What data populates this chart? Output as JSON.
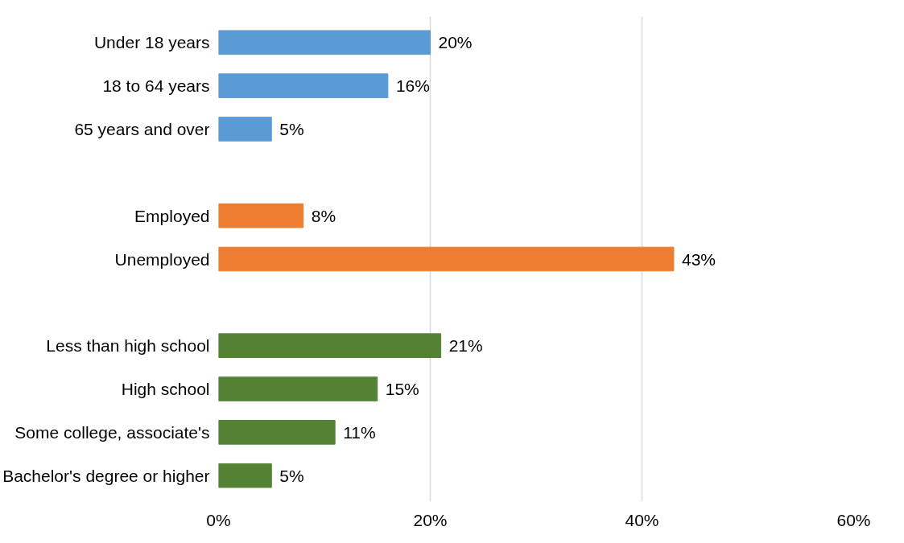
{
  "chart_data": {
    "type": "bar",
    "orientation": "horizontal",
    "categories": [
      "Under 18 years",
      "18 to 64 years",
      "65 years and over",
      null,
      "Employed",
      "Unemployed",
      null,
      "Less than high school",
      "High school",
      "Some college, associate's",
      "Bachelor's degree or higher"
    ],
    "values": [
      20,
      16,
      5,
      null,
      8,
      43,
      null,
      21,
      15,
      11,
      5
    ],
    "colors": [
      "#5b9bd5",
      "#5b9bd5",
      "#5b9bd5",
      null,
      "#ed7d31",
      "#ed7d31",
      null,
      "#548235",
      "#548235",
      "#548235",
      "#548235"
    ],
    "value_labels": [
      "20%",
      "16%",
      "5%",
      null,
      "8%",
      "43%",
      null,
      "21%",
      "15%",
      "11%",
      "5%"
    ],
    "xlim": [
      0,
      60
    ],
    "xticks": [
      {
        "value": 0,
        "label": "0%"
      },
      {
        "value": 20,
        "label": "20%"
      },
      {
        "value": 40,
        "label": "40%"
      },
      {
        "value": 60,
        "label": "60%"
      }
    ],
    "grid": "x"
  }
}
